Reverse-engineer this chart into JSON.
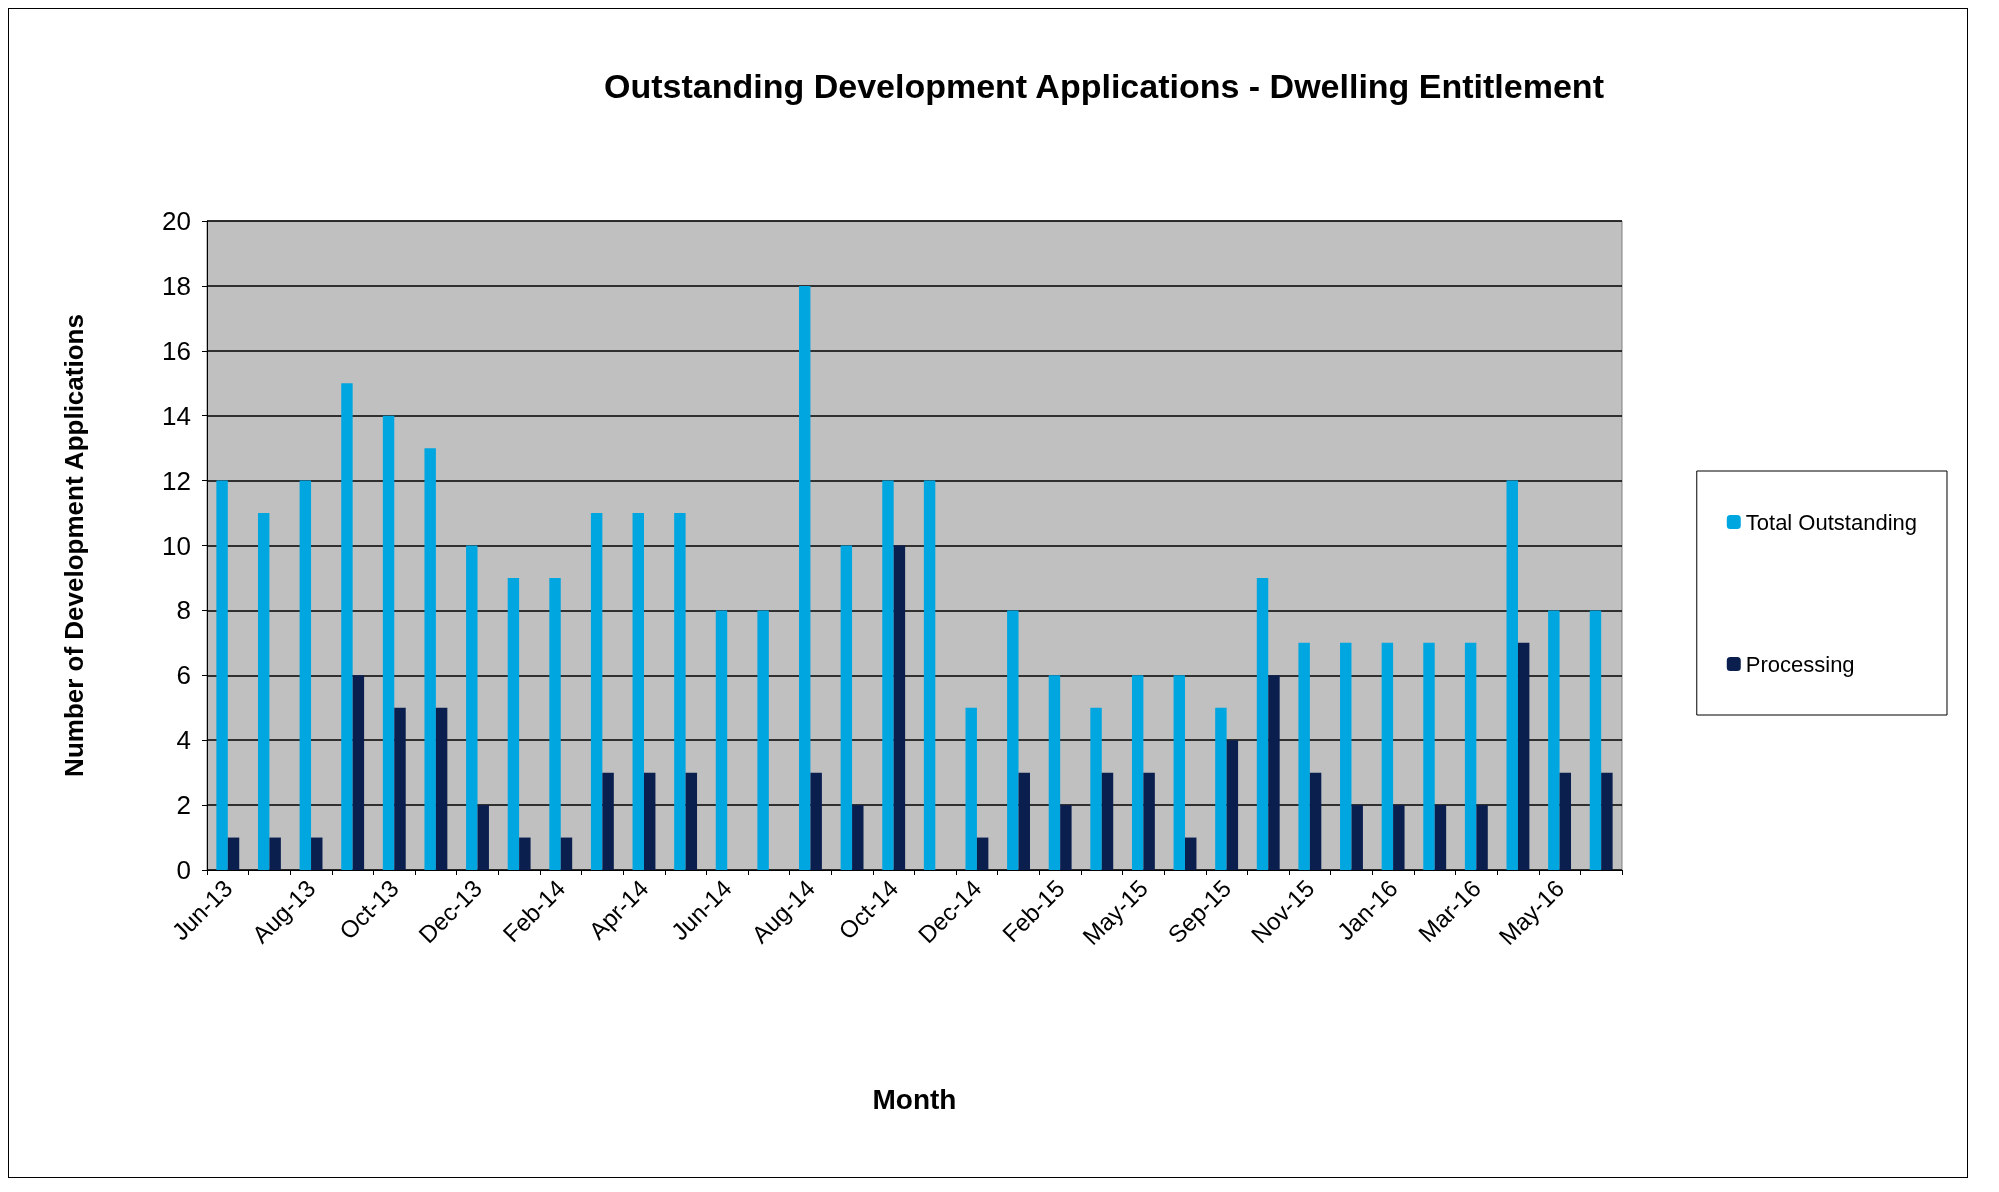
{
  "chart_data": {
    "type": "bar",
    "title": "Outstanding Development Applications - Dwelling Entitlement",
    "xlabel": "Month",
    "ylabel": "Number of Development Applications",
    "categories": [
      "Jun-13",
      null,
      "Aug-13",
      null,
      "Oct-13",
      null,
      "Dec-13",
      null,
      "Feb-14",
      null,
      "Apr-14",
      null,
      "Jun-14",
      null,
      "Aug-14",
      null,
      "Oct-14",
      null,
      "Dec-14",
      null,
      "Feb-15",
      null,
      "May-15",
      null,
      "Sep-15",
      null,
      "Nov-15",
      null,
      "Jan-16",
      null,
      "Mar-16",
      null,
      "May-16",
      null
    ],
    "series": [
      {
        "name": "Total Outstanding",
        "color": "#00a6e0",
        "values": [
          12,
          11,
          12,
          15,
          14,
          13,
          10,
          9,
          9,
          11,
          11,
          11,
          8,
          8,
          18,
          10,
          12,
          12,
          5,
          8,
          6,
          5,
          6,
          6,
          5,
          9,
          7,
          7,
          7,
          7,
          7,
          12,
          8,
          8
        ]
      },
      {
        "name": "Processing",
        "color": "#0b1f4f",
        "values": [
          1,
          1,
          1,
          6,
          5,
          5,
          2,
          1,
          1,
          3,
          3,
          3,
          0,
          0,
          3,
          2,
          10,
          0,
          1,
          3,
          2,
          3,
          3,
          1,
          4,
          6,
          3,
          2,
          2,
          2,
          2,
          7,
          3,
          3
        ]
      }
    ],
    "ylim": [
      0,
      20
    ],
    "yticks": [
      0,
      2,
      4,
      6,
      8,
      10,
      12,
      14,
      16,
      18,
      20
    ],
    "grid": "y",
    "legend": "right"
  }
}
